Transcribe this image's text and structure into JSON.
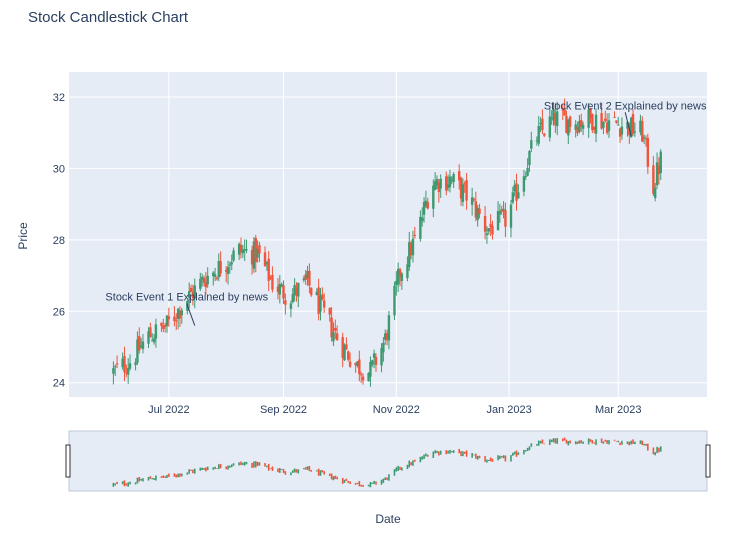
{
  "chart_data": {
    "type": "candlestick",
    "title": "Stock Candlestick Chart",
    "xlabel": "Date",
    "ylabel": "Price",
    "ylim": [
      23.6,
      32.7
    ],
    "y_ticks": [
      24,
      26,
      28,
      30,
      32
    ],
    "x_range": [
      "2022-05-08",
      "2023-04-18"
    ],
    "x_ticks": [
      {
        "date": "2022-07-01",
        "label": "Jul 2022"
      },
      {
        "date": "2022-09-01",
        "label": "Sep 2022"
      },
      {
        "date": "2022-11-01",
        "label": "Nov 2022"
      },
      {
        "date": "2023-01-01",
        "label": "Jan 2023"
      },
      {
        "date": "2023-03-01",
        "label": "Mar 2023"
      }
    ],
    "grid": true,
    "rangeslider": true,
    "increasing_color": "#3d9970",
    "decreasing_color": "#ef553b",
    "annotations": [
      {
        "text": "Stock Event 1 Explained by news",
        "date": "2022-07-15",
        "price": 25.6
      },
      {
        "text": "Stock Event 2 Explained by news",
        "date": "2023-03-08",
        "price": 30.9
      }
    ],
    "anchors": [
      [
        "2022-06-01",
        24.3
      ],
      [
        "2022-06-10",
        24.6
      ],
      [
        "2022-06-20",
        25.3
      ],
      [
        "2022-06-30",
        25.6
      ],
      [
        "2022-07-10",
        26.3
      ],
      [
        "2022-07-20",
        26.9
      ],
      [
        "2022-07-30",
        27.3
      ],
      [
        "2022-08-08",
        27.7
      ],
      [
        "2022-08-18",
        27.6
      ],
      [
        "2022-08-26",
        26.8
      ],
      [
        "2022-09-04",
        26.4
      ],
      [
        "2022-09-14",
        26.8
      ],
      [
        "2022-09-24",
        25.8
      ],
      [
        "2022-10-02",
        25.1
      ],
      [
        "2022-10-10",
        24.5
      ],
      [
        "2022-10-18",
        24.3
      ],
      [
        "2022-10-26",
        25.2
      ],
      [
        "2022-11-03",
        27.1
      ],
      [
        "2022-11-12",
        28.1
      ],
      [
        "2022-11-20",
        29.6
      ],
      [
        "2022-11-30",
        29.7
      ],
      [
        "2022-12-10",
        29.2
      ],
      [
        "2022-12-20",
        28.3
      ],
      [
        "2022-12-31",
        28.6
      ],
      [
        "2023-01-08",
        29.8
      ],
      [
        "2023-01-16",
        30.9
      ],
      [
        "2023-01-26",
        31.4
      ],
      [
        "2023-02-05",
        31.3
      ],
      [
        "2023-02-15",
        31.4
      ],
      [
        "2023-02-24",
        31.3
      ],
      [
        "2023-03-05",
        31.2
      ],
      [
        "2023-03-14",
        31.0
      ],
      [
        "2023-03-20",
        29.5
      ],
      [
        "2023-03-26",
        30.6
      ]
    ]
  }
}
